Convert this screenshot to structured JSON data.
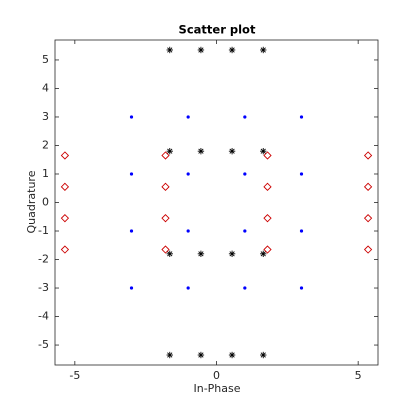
{
  "chart_data": {
    "type": "scatter",
    "title": "Scatter plot",
    "x_label": "In-Phase",
    "y_label": "Quadrature",
    "xlim": [
      -5.7,
      5.7
    ],
    "ylim": [
      -5.7,
      5.7
    ],
    "xticks": [
      -5,
      0,
      5
    ],
    "yticks": [
      -5,
      -4,
      -3,
      -2,
      -1,
      0,
      1,
      2,
      3,
      4,
      5
    ],
    "series": [
      {
        "color": "#0000ff",
        "marker": "dot",
        "x": [
          -3,
          -1,
          1,
          3,
          -3,
          -1,
          1,
          3,
          -3,
          -1,
          1,
          3,
          -3,
          -1,
          1,
          3
        ],
        "y": [
          3,
          3,
          3,
          3,
          1,
          1,
          1,
          1,
          -1,
          -1,
          -1,
          -1,
          -3,
          -3,
          -3,
          -3
        ]
      },
      {
        "color": "#000000",
        "marker": "asterisk",
        "x": [
          -1.65,
          -0.55,
          0.55,
          1.65,
          -1.65,
          -0.55,
          0.55,
          1.65,
          -1.65,
          -0.55,
          0.55,
          1.65,
          -1.65,
          -0.55,
          0.55,
          1.65
        ],
        "y": [
          5.35,
          5.35,
          5.35,
          5.35,
          1.8,
          1.8,
          1.8,
          1.8,
          -1.8,
          -1.8,
          -1.8,
          -1.8,
          -5.35,
          -5.35,
          -5.35,
          -5.35
        ]
      },
      {
        "color": "#cc0000",
        "marker": "diamond",
        "x": [
          -5.35,
          -5.35,
          -5.35,
          -5.35,
          -1.8,
          -1.8,
          -1.8,
          -1.8,
          1.8,
          1.8,
          1.8,
          1.8,
          5.35,
          5.35,
          5.35,
          5.35
        ],
        "y": [
          1.65,
          0.55,
          -0.55,
          -1.65,
          1.65,
          0.55,
          -0.55,
          -1.65,
          1.65,
          0.55,
          -0.55,
          -1.65,
          1.65,
          0.55,
          -0.55,
          -1.65
        ]
      }
    ]
  }
}
